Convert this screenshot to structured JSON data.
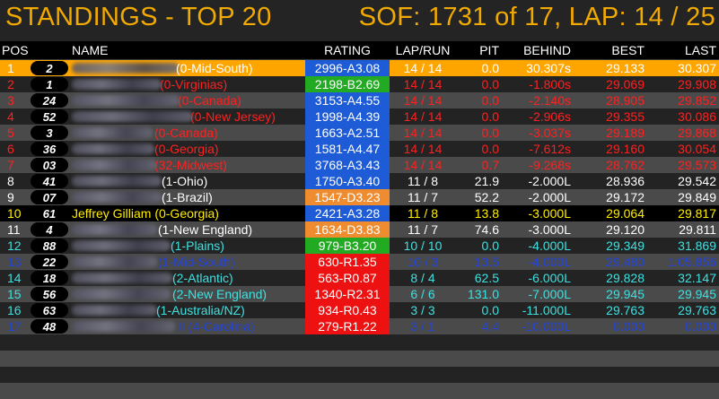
{
  "title": {
    "left": "STANDINGS - TOP 20",
    "right": "SOF: 1731 of 17, LAP: 14 / 25"
  },
  "headers": {
    "pos": "POS",
    "name": "NAME",
    "rating": "RATING",
    "laprun": "LAP/RUN",
    "pit": "PIT",
    "behind": "BEHIND",
    "best": "BEST",
    "last": "LAST"
  },
  "colors": {
    "leader_bg": "#ffa500",
    "lapped_red": "#ff2020",
    "same_lap_white": "#ffffff",
    "highlight_yellow": "#ffee00",
    "cyan": "#40e0e0",
    "blue": "#2244dd",
    "rating_blue": "#1e5bd6",
    "rating_green": "#22aa22",
    "rating_orange": "#f08c30",
    "rating_red": "#ee1111"
  },
  "rows": [
    {
      "pos": "1",
      "num": "2",
      "name": "(0-Mid-South)",
      "rating": "2996-A3.08",
      "laprun": "14 / 14",
      "pit": "0.0",
      "behind": "30.307s",
      "best": "29.133",
      "last": "30.307"
    },
    {
      "pos": "2",
      "num": "1",
      "name": "(0-Virginias)",
      "rating": "2198-B2.69",
      "laprun": "14 / 14",
      "pit": "0.0",
      "behind": "-1.800s",
      "best": "29.069",
      "last": "29.908"
    },
    {
      "pos": "3",
      "num": "24",
      "name": "(0-Canada)",
      "rating": "3153-A4.55",
      "laprun": "14 / 14",
      "pit": "0.0",
      "behind": "-2.140s",
      "best": "28.905",
      "last": "29.852"
    },
    {
      "pos": "4",
      "num": "52",
      "name": "(0-New Jersey)",
      "rating": "1998-A4.39",
      "laprun": "14 / 14",
      "pit": "0.0",
      "behind": "-2.906s",
      "best": "29.355",
      "last": "30.086"
    },
    {
      "pos": "5",
      "num": "3",
      "name": "(0-Canada)",
      "rating": "1663-A2.51",
      "laprun": "14 / 14",
      "pit": "0.0",
      "behind": "-3.037s",
      "best": "29.189",
      "last": "29.868"
    },
    {
      "pos": "6",
      "num": "36",
      "name": "(0-Georgia)",
      "rating": "1581-A4.47",
      "laprun": "14 / 14",
      "pit": "0.0",
      "behind": "-7.612s",
      "best": "29.160",
      "last": "30.054"
    },
    {
      "pos": "7",
      "num": "03",
      "name": "(32-Midwest)",
      "rating": "3768-A3.43",
      "laprun": "14 / 14",
      "pit": "0.7",
      "behind": "-9.268s",
      "best": "28.762",
      "last": "29.573"
    },
    {
      "pos": "8",
      "num": "41",
      "name": "(1-Ohio)",
      "rating": "1750-A3.40",
      "laprun": "11 / 8",
      "pit": "21.9",
      "behind": "-2.000L",
      "best": "28.936",
      "last": "29.542"
    },
    {
      "pos": "9",
      "num": "07",
      "name": "(1-Brazil)",
      "rating": "1547-D3.23",
      "laprun": "11 / 7",
      "pit": "52.2",
      "behind": "-2.000L",
      "best": "29.172",
      "last": "29.849"
    },
    {
      "pos": "10",
      "num": "61",
      "name": "Jeffrey Gilliam (0-Georgia)",
      "rating": "2421-A3.28",
      "laprun": "11 / 8",
      "pit": "13.8",
      "behind": "-3.000L",
      "best": "29.064",
      "last": "29.817"
    },
    {
      "pos": "11",
      "num": "4",
      "name": "(1-New England)",
      "rating": "1634-D3.83",
      "laprun": "11 / 7",
      "pit": "74.6",
      "behind": "-3.000L",
      "best": "29.120",
      "last": "29.811"
    },
    {
      "pos": "12",
      "num": "88",
      "name": "(1-Plains)",
      "rating": "979-B3.20",
      "laprun": "10 / 10",
      "pit": "0.0",
      "behind": "-4.000L",
      "best": "29.349",
      "last": "31.869"
    },
    {
      "pos": "13",
      "num": "22",
      "name": "(1-Mid-South)",
      "rating": "630-R1.35",
      "laprun": "10 / 3",
      "pit": "13.5",
      "behind": "-4.000L",
      "best": "29.480",
      "last": "1:05.856"
    },
    {
      "pos": "14",
      "num": "18",
      "name": "(2-Atlantic)",
      "rating": "563-R0.87",
      "laprun": "8 / 4",
      "pit": "62.5",
      "behind": "-6.000L",
      "best": "29.828",
      "last": "32.147"
    },
    {
      "pos": "15",
      "num": "56",
      "name": "(2-New England)",
      "rating": "1340-R2.31",
      "laprun": "6 / 6",
      "pit": "131.0",
      "behind": "-7.000L",
      "best": "29.945",
      "last": "29.945"
    },
    {
      "pos": "16",
      "num": "63",
      "name": "(1-Australia/NZ)",
      "rating": "934-R0.43",
      "laprun": "3 / 3",
      "pit": "0.0",
      "behind": "-11.000L",
      "best": "29.763",
      "last": "29.763"
    },
    {
      "pos": "17",
      "num": "48",
      "name": "II (4-Carolina)",
      "rating": "279-R1.22",
      "laprun": "3 / 1",
      "pit": "4.4",
      "behind": "-10.000L",
      "best": "0.000",
      "last": "0.000"
    }
  ]
}
